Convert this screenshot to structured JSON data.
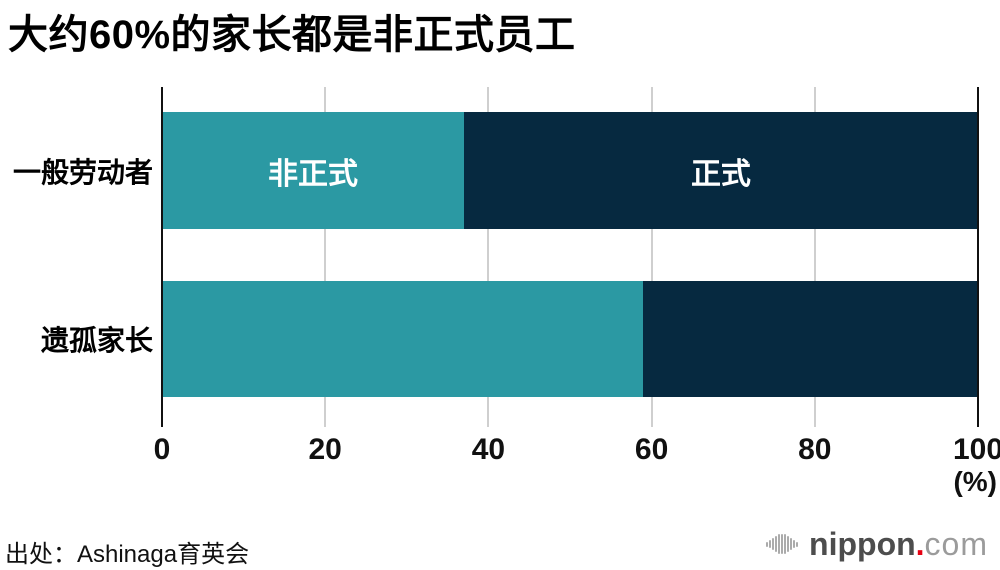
{
  "title": "大约60%的家长都是非正式员工",
  "chart_data": {
    "type": "bar",
    "orientation": "horizontal",
    "stacked": true,
    "title": "大约60%的家长都是非正式员工",
    "categories": [
      "一般劳动者",
      "遗孤家长"
    ],
    "series": [
      {
        "name": "非正式",
        "color": "#2b99a3",
        "values": [
          37,
          59
        ]
      },
      {
        "name": "正式",
        "color": "#062940",
        "values": [
          63,
          41
        ]
      }
    ],
    "segment_labels_on_row": 0,
    "bar_label_color": "#ffffff",
    "xlim": [
      0,
      100
    ],
    "x_tick_values": [
      0,
      20,
      40,
      60,
      80,
      100
    ],
    "x_ticks": [
      "0",
      "20",
      "40",
      "60",
      "80",
      "100"
    ],
    "x_unit_label": "(%)",
    "grid": "vertical",
    "gridline_color": "#cfcfcf",
    "axis_color": "#111111",
    "legend_position": "inside-bars"
  },
  "footer": {
    "source": "出处：Ashinaga育英会",
    "logo": {
      "icon": "audio-wave-icon",
      "brand": "nippon",
      "dot": ".",
      "tld": "com",
      "brand_color": "#4d4d4d",
      "dot_color": "#e60012",
      "tld_color": "#9b9b9b"
    }
  }
}
